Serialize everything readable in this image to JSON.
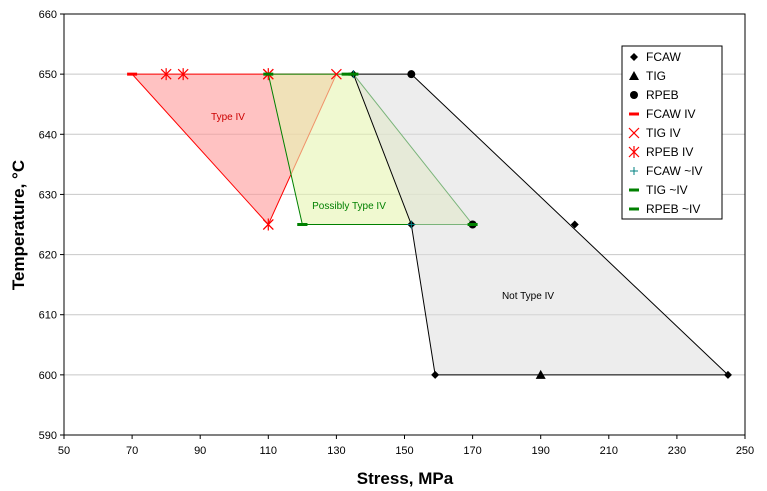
{
  "chart_data": {
    "type": "scatter",
    "title": "",
    "xlabel": "Stress, MPa",
    "ylabel": "Temperature, °C",
    "xlim": [
      50,
      250
    ],
    "ylim": [
      590,
      660
    ],
    "x_ticks": [
      50,
      70,
      90,
      110,
      130,
      150,
      170,
      190,
      210,
      230,
      250
    ],
    "y_ticks": [
      590,
      600,
      610,
      620,
      630,
      640,
      650,
      660
    ],
    "grid": "horizontal",
    "legend_position": "top-right",
    "regions": [
      {
        "name": "Type IV",
        "color": "#ff0000",
        "fill": "#ff9a9a",
        "points": [
          [
            70,
            650
          ],
          [
            130,
            650
          ],
          [
            110,
            625
          ]
        ]
      },
      {
        "name": "Possibly Type IV",
        "color": "#008000",
        "fill": "#e6f5b0",
        "points": [
          [
            110,
            650
          ],
          [
            135,
            650
          ],
          [
            170,
            625
          ],
          [
            120,
            625
          ]
        ]
      },
      {
        "name": "Not Type IV",
        "color": "#000000",
        "fill": "#dedede",
        "points": [
          [
            135,
            650
          ],
          [
            152,
            650
          ],
          [
            245,
            600
          ],
          [
            159,
            600
          ],
          [
            152,
            625
          ]
        ]
      }
    ],
    "series": [
      {
        "name": "FCAW",
        "marker": "diamond",
        "color": "#000000",
        "points": [
          [
            135,
            650
          ],
          [
            152,
            650
          ],
          [
            152,
            625
          ],
          [
            200,
            625
          ],
          [
            159,
            600
          ],
          [
            245,
            600
          ]
        ]
      },
      {
        "name": "TIG",
        "marker": "triangle",
        "color": "#000000",
        "points": [
          [
            190,
            600
          ]
        ]
      },
      {
        "name": "RPEB",
        "marker": "circle",
        "color": "#000000",
        "points": [
          [
            152,
            650
          ],
          [
            170,
            625
          ]
        ]
      },
      {
        "name": "FCAW IV",
        "marker": "dash",
        "color": "#ff0000",
        "points": [
          [
            70,
            650
          ]
        ]
      },
      {
        "name": "TIG IV",
        "marker": "x",
        "color": "#ff0000",
        "points": [
          [
            110,
            650
          ],
          [
            130,
            650
          ],
          [
            110,
            625
          ]
        ]
      },
      {
        "name": "RPEB IV",
        "marker": "star",
        "color": "#ff0000",
        "points": [
          [
            80,
            650
          ],
          [
            85,
            650
          ],
          [
            110,
            650
          ],
          [
            110,
            625
          ]
        ]
      },
      {
        "name": "FCAW ~IV",
        "marker": "plus",
        "color": "#008080",
        "points": [
          [
            135,
            650
          ],
          [
            152,
            625
          ]
        ]
      },
      {
        "name": "TIG ~IV",
        "marker": "dash",
        "color": "#008000",
        "points": [
          [
            110,
            650
          ],
          [
            133,
            650
          ],
          [
            120,
            625
          ]
        ]
      },
      {
        "name": "RPEB ~IV",
        "marker": "dash",
        "color": "#008000",
        "points": [
          [
            135,
            650
          ],
          [
            120,
            625
          ],
          [
            170,
            625
          ]
        ]
      }
    ]
  }
}
